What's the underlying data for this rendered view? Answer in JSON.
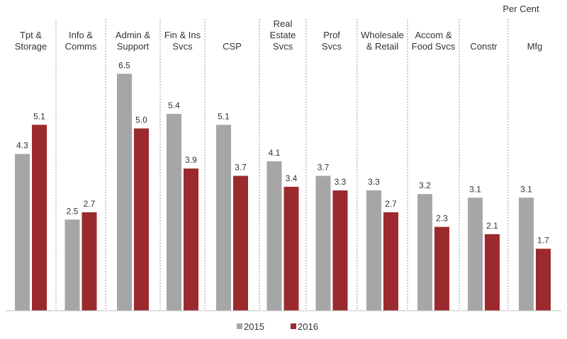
{
  "chart_data": {
    "type": "bar",
    "title": "",
    "unit_label": "Per Cent",
    "xlabel": "",
    "ylabel": "",
    "ylim": [
      0,
      7
    ],
    "grid": false,
    "legend_position": "bottom-center",
    "categories": [
      [
        "Tpt &",
        "Storage"
      ],
      [
        "Info &",
        "Comms"
      ],
      [
        "Admin &",
        "Support"
      ],
      [
        "Fin & Ins",
        "Svcs"
      ],
      [
        "CSP"
      ],
      [
        "Real",
        "Estate",
        "Svcs"
      ],
      [
        "Prof",
        "Svcs"
      ],
      [
        "Wholesale",
        "& Retail"
      ],
      [
        "Accom &",
        "Food Svcs"
      ],
      [
        "Constr"
      ],
      [
        "Mfg"
      ]
    ],
    "series": [
      {
        "name": "2015",
        "color": "#a6a6a6",
        "values": [
          4.3,
          2.5,
          6.5,
          5.4,
          5.1,
          4.1,
          3.7,
          3.3,
          3.2,
          3.1,
          3.1
        ],
        "labels": [
          "4.3",
          "2.5",
          "6.5",
          "5.4",
          "5.1",
          "4.1",
          "3.7",
          "3.3",
          "3.2",
          "3.1",
          "3.1"
        ]
      },
      {
        "name": "2016",
        "color": "#9b2a2e",
        "values": [
          5.1,
          2.7,
          5.0,
          3.9,
          3.7,
          3.4,
          3.3,
          2.7,
          2.3,
          2.1,
          1.7
        ],
        "labels": [
          "5.1",
          "2.7",
          "5.0",
          "3.9",
          "3.7",
          "3.4",
          "3.3",
          "2.7",
          "2.3",
          "2.1",
          "1.7"
        ]
      }
    ]
  }
}
